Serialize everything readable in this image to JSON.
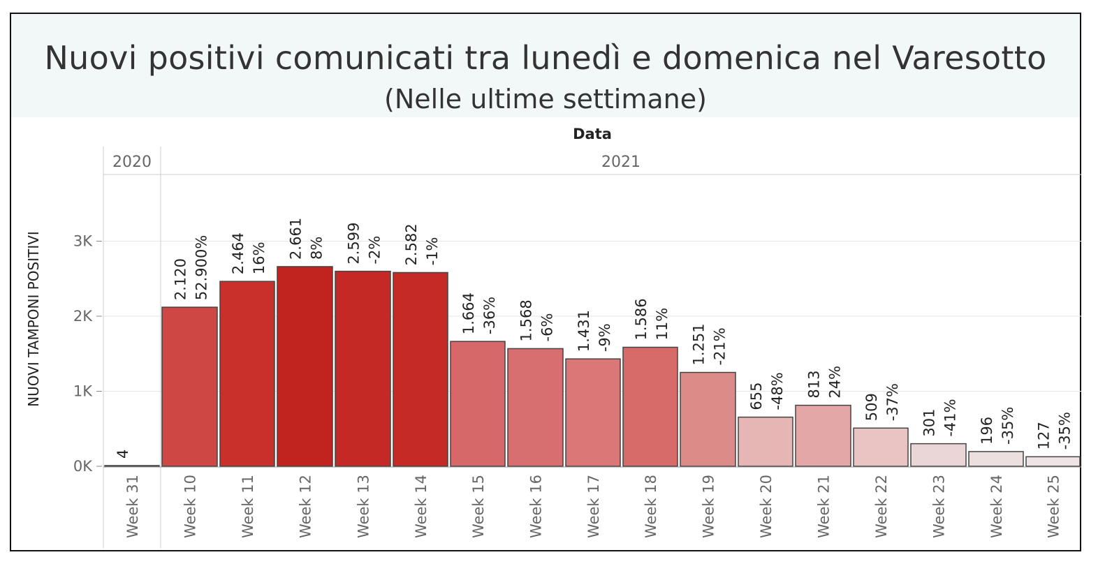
{
  "header": {
    "title": "Nuovi positivi comunicati tra lunedì e domenica nel Varesotto",
    "subtitle": "(Nelle ultime settimane)"
  },
  "colors": {
    "frame": "#111111",
    "header_bg": "#f2f8f8",
    "bar_stroke": "#444444",
    "grid": "#e6e6e6",
    "divider": "#cccccc"
  },
  "chart_data": {
    "type": "bar",
    "column_header": "Data",
    "ylabel": "NUOVI TAMPONI POSITIVI",
    "ylim": [
      0,
      3900
    ],
    "yticks": [
      {
        "value": 0,
        "label": "0K"
      },
      {
        "value": 1000,
        "label": "1K"
      },
      {
        "value": 2000,
        "label": "2K"
      },
      {
        "value": 3000,
        "label": "3K"
      }
    ],
    "groups": [
      {
        "label": "2020",
        "count": 1
      },
      {
        "label": "2021",
        "count": 16
      }
    ],
    "categories": [
      "Week 31",
      "Week 10",
      "Week 11",
      "Week 12",
      "Week 13",
      "Week 14",
      "Week 15",
      "Week 16",
      "Week 17",
      "Week 18",
      "Week 19",
      "Week 20",
      "Week 21",
      "Week 22",
      "Week 23",
      "Week 24",
      "Week 25"
    ],
    "values": [
      4,
      2120,
      2464,
      2661,
      2599,
      2582,
      1664,
      1568,
      1431,
      1586,
      1251,
      655,
      813,
      509,
      301,
      196,
      127
    ],
    "value_labels": [
      "4",
      "2.120",
      "2.464",
      "2.661",
      "2.599",
      "2.582",
      "1.664",
      "1.568",
      "1.431",
      "1.586",
      "1.251",
      "655",
      "813",
      "509",
      "301",
      "196",
      "127"
    ],
    "pct_labels": [
      "",
      "52.900%",
      "16%",
      "8%",
      "-2%",
      "-1%",
      "-36%",
      "-6%",
      "-9%",
      "11%",
      "-21%",
      "-48%",
      "24%",
      "-37%",
      "-41%",
      "-35%",
      "-35%"
    ],
    "bar_colors": [
      "#b0281f",
      "#ce4744",
      "#c7302b",
      "#c1231f",
      "#c42926",
      "#c52a27",
      "#d6686a",
      "#d76f70",
      "#d97876",
      "#d76b6a",
      "#dd8b89",
      "#e6b6b5",
      "#e3a7a7",
      "#e9c4c3",
      "#ebd6d7",
      "#ecdfe0",
      "#eee4e6"
    ],
    "grid": true,
    "legend": "none"
  }
}
